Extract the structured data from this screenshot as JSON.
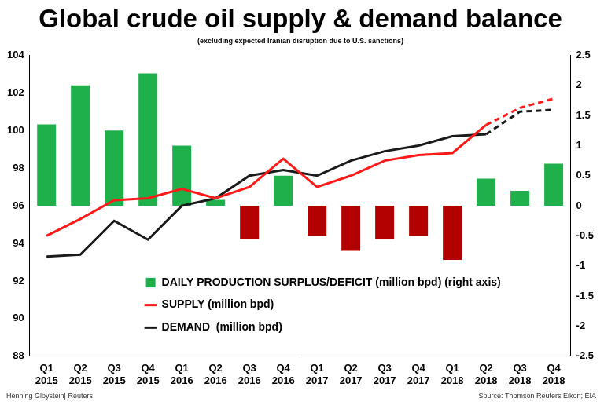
{
  "chart_data": {
    "type": "bar",
    "title": "Global crude oil supply & demand balance",
    "subtitle": "(excluding expected Iranian disruption due to U.S. sanctions)",
    "credit": "Henning Gloystein| Reuters",
    "source": "Source: Thomson Reuters Eikon; EIA",
    "categories": [
      "Q1 2015",
      "Q2 2015",
      "Q3 2015",
      "Q4 2015",
      "Q1 2016",
      "Q2 2016",
      "Q3 2016",
      "Q4 2016",
      "Q1 2017",
      "Q2 2017",
      "Q3 2017",
      "Q4 2017",
      "Q1 2018",
      "Q2 2018",
      "Q3 2018",
      "Q4 2018"
    ],
    "series": [
      {
        "name": "DAILY PRODUCTION SURPLUS/DEFICIT (million bpd) (right axis)",
        "type": "bar",
        "axis": "y2",
        "colors": [
          "#20b04b",
          "#20b04b",
          "#20b04b",
          "#20b04b",
          "#20b04b",
          "#20b04b",
          "#b30000",
          "#20b04b",
          "#b30000",
          "#b30000",
          "#b30000",
          "#b30000",
          "#b30000",
          "#20b04b",
          "#20b04b",
          "#20b04b"
        ],
        "values": [
          1.35,
          2.0,
          1.25,
          2.2,
          1.0,
          0.1,
          -0.55,
          0.5,
          -0.5,
          -0.75,
          -0.55,
          -0.5,
          -0.9,
          0.45,
          0.25,
          0.7
        ]
      },
      {
        "name": "SUPPLY (million bpd)",
        "type": "line",
        "axis": "y",
        "color": "#ff1a1a",
        "line_style": "solid",
        "values": [
          94.4,
          95.3,
          96.3,
          96.4,
          96.9,
          96.4,
          97.0,
          98.5,
          97.0,
          97.6,
          98.4,
          98.7,
          98.8,
          100.3,
          null,
          null
        ]
      },
      {
        "name": "SUPPLY (million bpd)",
        "type": "line",
        "axis": "y",
        "color": "#ff1a1a",
        "line_style": "dashed",
        "values": [
          null,
          null,
          null,
          null,
          null,
          null,
          null,
          null,
          null,
          null,
          null,
          null,
          null,
          100.3,
          101.2,
          101.7
        ]
      },
      {
        "name": "DEMAND  (million bpd)",
        "type": "line",
        "axis": "y",
        "color": "#1a1a1a",
        "line_style": "solid",
        "values": [
          93.3,
          93.4,
          95.2,
          94.2,
          96.0,
          96.4,
          97.6,
          97.9,
          97.6,
          98.4,
          98.9,
          99.2,
          99.7,
          99.8,
          null,
          null
        ]
      },
      {
        "name": "DEMAND  (million bpd)",
        "type": "line",
        "axis": "y",
        "color": "#1a1a1a",
        "line_style": "dashed",
        "values": [
          null,
          null,
          null,
          null,
          null,
          null,
          null,
          null,
          null,
          null,
          null,
          null,
          null,
          99.8,
          101.0,
          101.1
        ]
      }
    ],
    "ylim": [
      88,
      104
    ],
    "yticks": [
      88,
      90,
      92,
      94,
      96,
      98,
      100,
      102,
      104
    ],
    "y2lim": [
      -2.5,
      2.5
    ],
    "y2ticks": [
      -2.5,
      -2,
      -1.5,
      -1,
      -0.5,
      0,
      0.5,
      1,
      1.5,
      2,
      2.5
    ],
    "grid": false,
    "legend": "bottom"
  }
}
